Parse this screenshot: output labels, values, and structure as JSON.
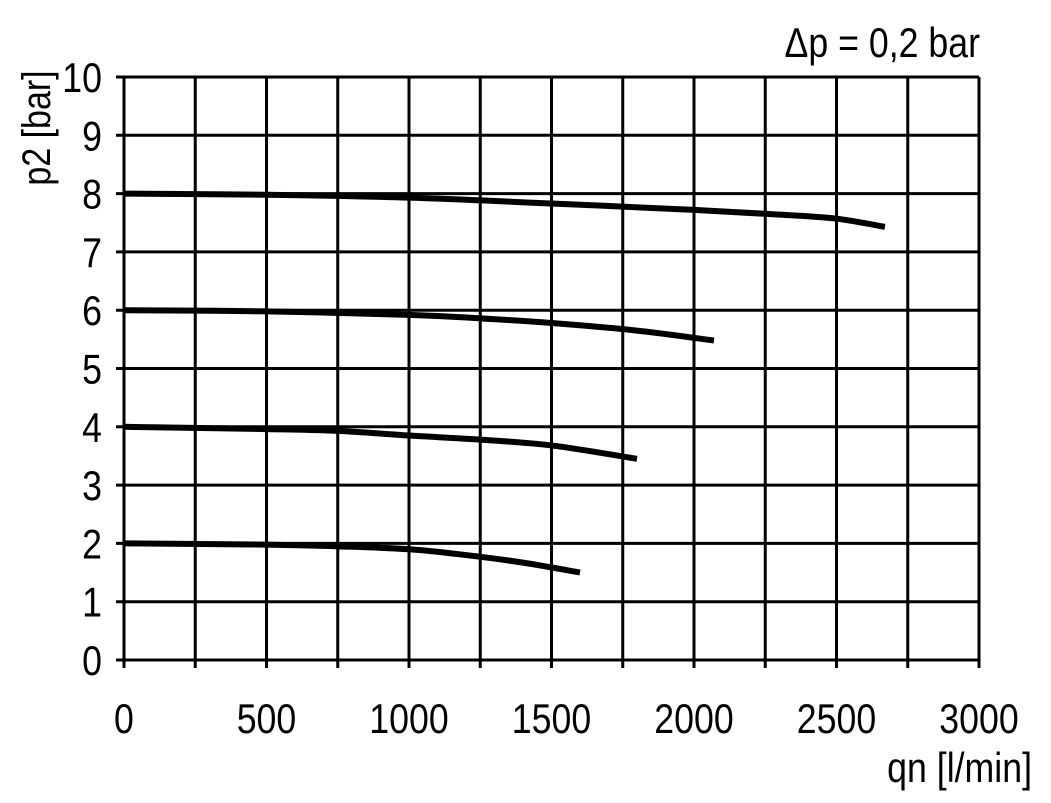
{
  "chart_data": {
    "type": "line",
    "title": "Δp = 0,2 bar",
    "xlabel": "qn [l/min]",
    "ylabel": "p2 [bar]",
    "xlim": [
      0,
      3000
    ],
    "ylim": [
      0,
      10
    ],
    "x_ticks": [
      0,
      500,
      1000,
      1500,
      2000,
      2500,
      3000
    ],
    "x_tick_labels": [
      "0",
      "500",
      "1000",
      "1500",
      "2000",
      "2500",
      "3000"
    ],
    "x_grid_step": 250,
    "y_ticks": [
      0,
      1,
      2,
      3,
      4,
      5,
      6,
      7,
      8,
      9,
      10
    ],
    "y_tick_labels": [
      "0",
      "1",
      "2",
      "3",
      "4",
      "5",
      "6",
      "7",
      "8",
      "9",
      "10"
    ],
    "grid": true,
    "line_color": "#000000",
    "series": [
      {
        "x": [
          0,
          500,
          1000,
          1500,
          2000,
          2300,
          2500,
          2670
        ],
        "y": [
          8.0,
          7.98,
          7.93,
          7.83,
          7.72,
          7.64,
          7.57,
          7.43
        ]
      },
      {
        "x": [
          0,
          500,
          1000,
          1250,
          1500,
          1800,
          2070
        ],
        "y": [
          6.0,
          5.98,
          5.92,
          5.86,
          5.78,
          5.65,
          5.48
        ]
      },
      {
        "x": [
          0,
          500,
          750,
          1000,
          1250,
          1500,
          1800
        ],
        "y": [
          4.0,
          3.96,
          3.93,
          3.85,
          3.78,
          3.68,
          3.45
        ]
      },
      {
        "x": [
          0,
          500,
          750,
          1000,
          1200,
          1400,
          1600
        ],
        "y": [
          2.0,
          1.98,
          1.95,
          1.9,
          1.8,
          1.67,
          1.5
        ]
      }
    ]
  }
}
